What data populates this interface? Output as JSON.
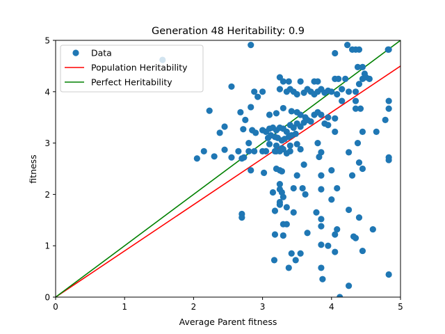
{
  "chart_data": {
    "type": "scatter",
    "title": "Generation 48 Heritability: 0.9",
    "xlabel": "Average Parent fitness",
    "ylabel": "fitness",
    "xlim": [
      0,
      5
    ],
    "ylim": [
      0,
      5
    ],
    "xticks": [
      "0",
      "1",
      "2",
      "3",
      "4",
      "5"
    ],
    "yticks": [
      "0",
      "1",
      "2",
      "3",
      "4",
      "5"
    ],
    "grid": false,
    "legend_position": "top-left",
    "series": [
      {
        "name": "Data",
        "kind": "scatter",
        "color": "#1f77b4",
        "points": [
          [
            1.55,
            4.62
          ],
          [
            2.83,
            4.91
          ],
          [
            4.23,
            4.91
          ],
          [
            4.05,
            4.75
          ],
          [
            4.3,
            4.82
          ],
          [
            4.35,
            4.82
          ],
          [
            4.4,
            4.82
          ],
          [
            4.82,
            4.82
          ],
          [
            4.83,
            4.82
          ],
          [
            4.45,
            4.48
          ],
          [
            4.38,
            4.48
          ],
          [
            4.48,
            4.35
          ],
          [
            4.2,
            4.25
          ],
          [
            4.05,
            4.25
          ],
          [
            4.1,
            4.25
          ],
          [
            3.3,
            4.2
          ],
          [
            3.38,
            4.2
          ],
          [
            3.55,
            4.2
          ],
          [
            3.75,
            4.2
          ],
          [
            3.8,
            4.2
          ],
          [
            3.25,
            4.28
          ],
          [
            2.55,
            4.1
          ],
          [
            2.88,
            4.0
          ],
          [
            2.93,
            3.9
          ],
          [
            3.0,
            4.0
          ],
          [
            3.25,
            4.05
          ],
          [
            3.35,
            4.0
          ],
          [
            3.4,
            4.05
          ],
          [
            3.45,
            4.0
          ],
          [
            3.5,
            3.95
          ],
          [
            3.6,
            3.98
          ],
          [
            3.65,
            4.05
          ],
          [
            3.7,
            4.0
          ],
          [
            3.75,
            3.95
          ],
          [
            3.8,
            4.0
          ],
          [
            3.85,
            4.05
          ],
          [
            3.9,
            3.98
          ],
          [
            3.95,
            4.02
          ],
          [
            4.0,
            4.0
          ],
          [
            4.08,
            3.95
          ],
          [
            4.15,
            4.05
          ],
          [
            4.25,
            4.0
          ],
          [
            4.35,
            4.0
          ],
          [
            4.4,
            4.15
          ],
          [
            4.45,
            4.25
          ],
          [
            4.5,
            4.28
          ],
          [
            4.55,
            4.25
          ],
          [
            4.83,
            3.82
          ],
          [
            4.83,
            3.67
          ],
          [
            4.78,
            3.45
          ],
          [
            4.35,
            3.82
          ],
          [
            4.35,
            3.67
          ],
          [
            4.42,
            3.67
          ],
          [
            4.15,
            3.82
          ],
          [
            2.23,
            3.63
          ],
          [
            2.68,
            3.6
          ],
          [
            2.83,
            3.7
          ],
          [
            2.75,
            3.45
          ],
          [
            3.1,
            3.55
          ],
          [
            3.2,
            3.58
          ],
          [
            3.3,
            3.68
          ],
          [
            3.42,
            3.62
          ],
          [
            3.5,
            3.6
          ],
          [
            3.55,
            3.55
          ],
          [
            3.62,
            3.5
          ],
          [
            3.75,
            3.55
          ],
          [
            3.8,
            3.6
          ],
          [
            3.85,
            3.55
          ],
          [
            3.95,
            3.5
          ],
          [
            4.05,
            3.48
          ],
          [
            2.45,
            3.32
          ],
          [
            2.38,
            3.2
          ],
          [
            2.72,
            3.27
          ],
          [
            2.85,
            3.25
          ],
          [
            2.9,
            3.2
          ],
          [
            3.0,
            3.25
          ],
          [
            3.05,
            3.22
          ],
          [
            3.1,
            3.28
          ],
          [
            3.15,
            3.3
          ],
          [
            3.2,
            3.25
          ],
          [
            3.25,
            3.3
          ],
          [
            3.3,
            3.28
          ],
          [
            3.35,
            3.22
          ],
          [
            3.4,
            3.35
          ],
          [
            3.45,
            3.3
          ],
          [
            3.5,
            3.38
          ],
          [
            3.55,
            3.32
          ],
          [
            3.6,
            3.4
          ],
          [
            3.65,
            3.45
          ],
          [
            3.7,
            3.42
          ],
          [
            3.9,
            3.38
          ],
          [
            3.95,
            3.35
          ],
          [
            4.05,
            3.22
          ],
          [
            4.45,
            3.22
          ],
          [
            4.65,
            3.22
          ],
          [
            3.08,
            3.1
          ],
          [
            3.12,
            3.15
          ],
          [
            3.18,
            3.12
          ],
          [
            3.22,
            3.1
          ],
          [
            3.28,
            3.05
          ],
          [
            3.32,
            3.08
          ],
          [
            3.38,
            3.12
          ],
          [
            3.42,
            3.15
          ],
          [
            3.48,
            3.18
          ],
          [
            2.8,
            3.0
          ],
          [
            3.1,
            2.98
          ],
          [
            3.2,
            2.95
          ],
          [
            3.28,
            2.9
          ],
          [
            3.4,
            2.95
          ],
          [
            3.5,
            2.98
          ],
          [
            3.8,
            3.0
          ],
          [
            4.38,
            3.0
          ],
          [
            2.05,
            2.7
          ],
          [
            2.15,
            2.84
          ],
          [
            2.3,
            2.74
          ],
          [
            2.45,
            2.87
          ],
          [
            2.55,
            2.72
          ],
          [
            2.65,
            2.84
          ],
          [
            2.7,
            2.7
          ],
          [
            2.73,
            2.72
          ],
          [
            2.8,
            2.84
          ],
          [
            2.88,
            2.84
          ],
          [
            3.0,
            2.84
          ],
          [
            3.05,
            2.84
          ],
          [
            3.18,
            2.84
          ],
          [
            3.2,
            2.84
          ],
          [
            3.25,
            2.84
          ],
          [
            3.3,
            2.88
          ],
          [
            3.35,
            2.8
          ],
          [
            3.4,
            2.84
          ],
          [
            3.55,
            2.88
          ],
          [
            3.85,
            2.82
          ],
          [
            4.25,
            2.82
          ],
          [
            3.6,
            2.58
          ],
          [
            3.02,
            2.42
          ],
          [
            3.2,
            2.5
          ],
          [
            3.25,
            2.47
          ],
          [
            3.28,
            2.45
          ],
          [
            3.5,
            2.37
          ],
          [
            3.85,
            2.37
          ],
          [
            3.82,
            2.73
          ],
          [
            4.0,
            2.47
          ],
          [
            4.4,
            2.62
          ],
          [
            4.45,
            2.5
          ],
          [
            4.3,
            2.37
          ],
          [
            2.83,
            2.47
          ],
          [
            3.15,
            2.04
          ],
          [
            3.25,
            2.2
          ],
          [
            3.25,
            2.1
          ],
          [
            3.28,
            2.04
          ],
          [
            3.3,
            1.95
          ],
          [
            3.25,
            1.85
          ],
          [
            3.25,
            1.8
          ],
          [
            3.45,
            2.12
          ],
          [
            3.58,
            2.12
          ],
          [
            3.45,
            1.65
          ],
          [
            3.62,
            2.0
          ],
          [
            3.85,
            2.1
          ],
          [
            4.0,
            1.9
          ],
          [
            4.08,
            2.12
          ],
          [
            4.25,
            1.7
          ],
          [
            4.4,
            1.55
          ],
          [
            3.18,
            1.68
          ],
          [
            3.35,
            1.75
          ],
          [
            3.78,
            1.65
          ],
          [
            3.85,
            1.52
          ],
          [
            3.85,
            1.38
          ],
          [
            4.05,
            1.22
          ],
          [
            4.08,
            1.32
          ],
          [
            4.32,
            1.18
          ],
          [
            4.35,
            1.15
          ],
          [
            4.6,
            1.32
          ],
          [
            3.3,
            1.42
          ],
          [
            3.35,
            1.42
          ],
          [
            3.18,
            1.22
          ],
          [
            3.3,
            1.2
          ],
          [
            3.65,
            1.25
          ],
          [
            2.7,
            1.62
          ],
          [
            2.7,
            1.55
          ],
          [
            3.85,
            1.02
          ],
          [
            3.95,
            1.0
          ],
          [
            4.05,
            0.88
          ],
          [
            4.45,
            0.9
          ],
          [
            3.42,
            0.85
          ],
          [
            3.55,
            0.85
          ],
          [
            3.48,
            0.72
          ],
          [
            3.17,
            0.72
          ],
          [
            3.38,
            0.57
          ],
          [
            3.85,
            0.57
          ],
          [
            3.87,
            0.35
          ],
          [
            4.25,
            0.22
          ],
          [
            4.83,
            0.44
          ],
          [
            4.83,
            2.72
          ],
          [
            4.83,
            2.67
          ],
          [
            4.12,
            0.0
          ]
        ]
      },
      {
        "name": "Population Heritability",
        "kind": "line",
        "color": "#ff0000",
        "x": [
          0,
          5
        ],
        "y": [
          0,
          4.5
        ]
      },
      {
        "name": "Perfect Heritability",
        "kind": "line",
        "color": "#008000",
        "x": [
          0,
          5
        ],
        "y": [
          0,
          5
        ]
      }
    ]
  }
}
